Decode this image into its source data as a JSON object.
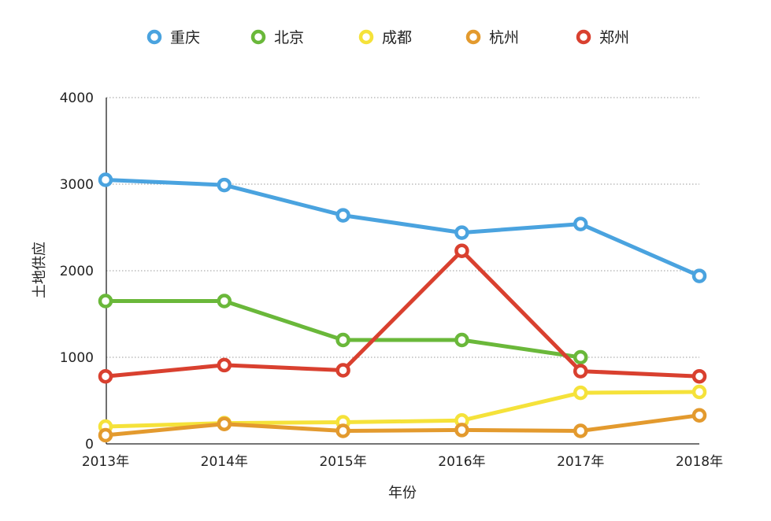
{
  "chart_data": {
    "type": "line",
    "title": "",
    "xlabel": "年份",
    "ylabel": "土地供应",
    "categories": [
      "2013年",
      "2014年",
      "2015年",
      "2016年",
      "2017年",
      "2018年"
    ],
    "ylim": [
      0,
      4000
    ],
    "yticks": [
      0,
      1000,
      2000,
      3000,
      4000
    ],
    "grid": true,
    "legend_position": "top",
    "series": [
      {
        "name": "重庆",
        "color": "#4aa3df",
        "values": [
          3050,
          2990,
          2640,
          2440,
          2540,
          1940
        ]
      },
      {
        "name": "北京",
        "color": "#6ab83a",
        "values": [
          1650,
          1650,
          1200,
          1200,
          1000,
          null
        ]
      },
      {
        "name": "成都",
        "color": "#f5e23a",
        "values": [
          200,
          240,
          250,
          270,
          590,
          600
        ]
      },
      {
        "name": "杭州",
        "color": "#e39a2e",
        "values": [
          100,
          230,
          150,
          160,
          150,
          330
        ]
      },
      {
        "name": "郑州",
        "color": "#d9402f",
        "values": [
          780,
          910,
          850,
          2230,
          840,
          780
        ]
      }
    ]
  }
}
